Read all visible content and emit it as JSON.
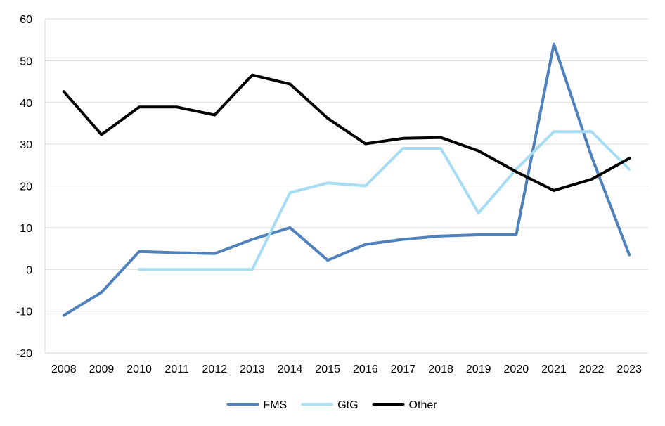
{
  "chart_data": {
    "type": "line",
    "title": "",
    "xlabel": "",
    "ylabel": "",
    "ylim": [
      -20,
      60
    ],
    "yticks": [
      -20,
      -10,
      0,
      10,
      20,
      30,
      40,
      50,
      60
    ],
    "categories": [
      "2008",
      "2009",
      "2010",
      "2011",
      "2012",
      "2013",
      "2014",
      "2015",
      "2016",
      "2017",
      "2018",
      "2019",
      "2020",
      "2021",
      "2022",
      "2023"
    ],
    "grid": true,
    "legend_position": "bottom",
    "series": [
      {
        "name": "FMS",
        "color": "#4f81bd",
        "values": [
          -11,
          -5.5,
          4.3,
          4.0,
          3.8,
          7.2,
          10.0,
          2.2,
          6.0,
          7.2,
          8.0,
          8.3,
          8.3,
          54.0,
          27.0,
          3.5
        ]
      },
      {
        "name": "GtG",
        "color": "#a6dcf4",
        "values": [
          null,
          null,
          0,
          0,
          0,
          0,
          18.4,
          20.7,
          20.0,
          29.0,
          29.0,
          13.5,
          24.0,
          33.0,
          33.0,
          24.0
        ]
      },
      {
        "name": "Other",
        "color": "#000000",
        "values": [
          42.6,
          32.3,
          38.9,
          38.9,
          37.0,
          46.6,
          44.4,
          36.2,
          30.1,
          31.4,
          31.6,
          28.4,
          23.4,
          18.9,
          21.6,
          26.6
        ]
      }
    ]
  }
}
